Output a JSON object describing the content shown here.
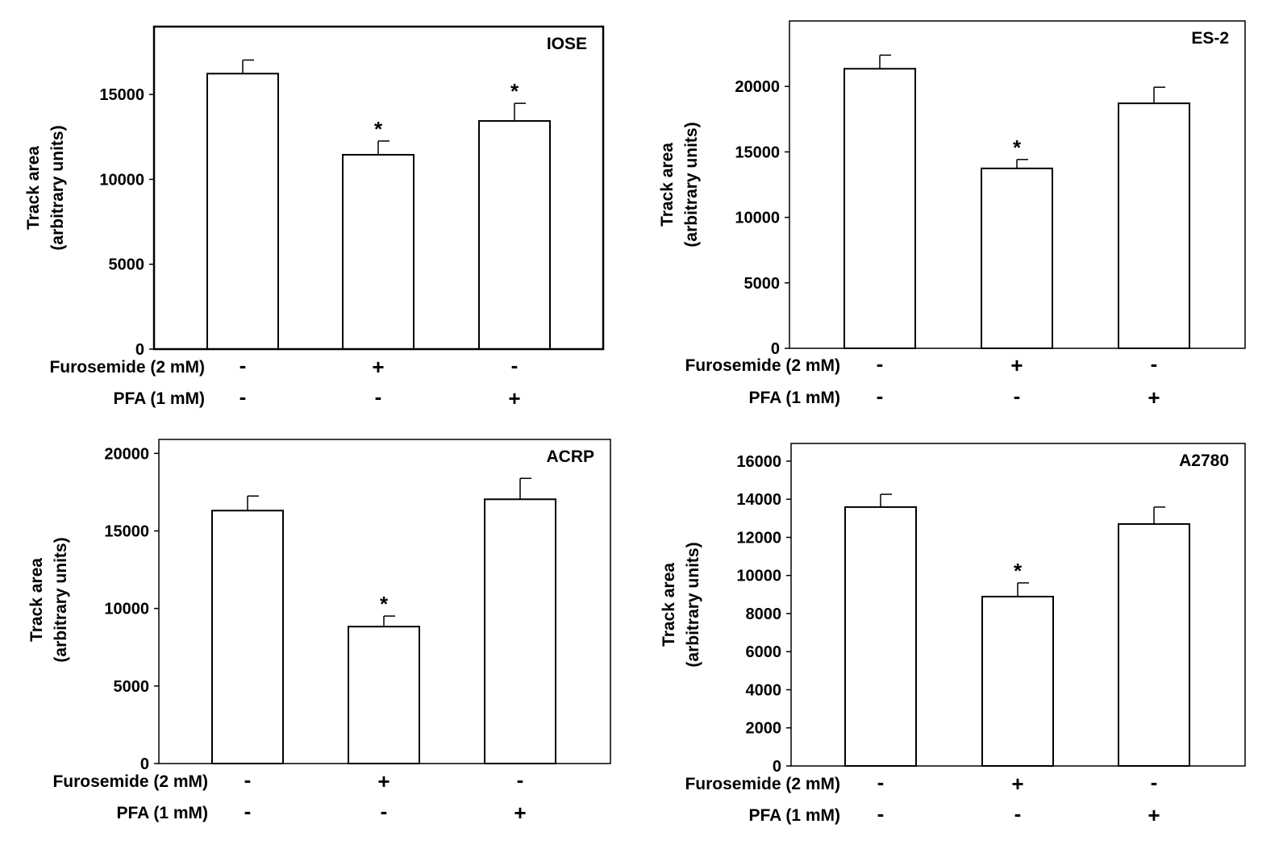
{
  "chart_data": [
    {
      "type": "bar",
      "title": "IOSE",
      "ylabel": [
        "Track area",
        "(arbitrary units)"
      ],
      "ylim": [
        0,
        19000
      ],
      "yticks": [
        0,
        5000,
        10000,
        15000
      ],
      "rows": [
        {
          "label": "Furosemide (2 mM)",
          "values": [
            "-",
            "+",
            "-"
          ]
        },
        {
          "label": "PFA (1 mM)",
          "values": [
            "-",
            "-",
            "+"
          ]
        }
      ],
      "values": [
        16230,
        11450,
        13440
      ],
      "errors": [
        800,
        810,
        1040
      ],
      "significance": [
        "",
        "*",
        "*"
      ]
    },
    {
      "type": "bar",
      "title": "ES-2",
      "ylabel": [
        "Track area",
        "(arbitrary units)"
      ],
      "ylim": [
        0,
        25000
      ],
      "yticks": [
        0,
        5000,
        10000,
        15000,
        20000
      ],
      "rows": [
        {
          "label": "Furosemide (2 mM)",
          "values": [
            "-",
            "+",
            "-"
          ]
        },
        {
          "label": "PFA (1 mM)",
          "values": [
            "-",
            "-",
            "+"
          ]
        }
      ],
      "values": [
        21350,
        13740,
        18710
      ],
      "errors": [
        1040,
        680,
        1230
      ],
      "significance": [
        "",
        "*",
        ""
      ]
    },
    {
      "type": "bar",
      "title": "ACRP",
      "ylabel": [
        "Track area",
        "(arbitrary units)"
      ],
      "ylim": [
        0,
        20900
      ],
      "yticks": [
        0,
        5000,
        10000,
        15000,
        20000
      ],
      "rows": [
        {
          "label": "Furosemide (2 mM)",
          "values": [
            "-",
            "+",
            "-"
          ]
        },
        {
          "label": "PFA (1 mM)",
          "values": [
            "-",
            "-",
            "+"
          ]
        }
      ],
      "values": [
        16310,
        8830,
        17040
      ],
      "errors": [
        940,
        680,
        1350
      ],
      "significance": [
        "",
        "*",
        ""
      ]
    },
    {
      "type": "bar",
      "title": "A2780",
      "ylabel": [
        "Track area",
        "(arbitrary units)"
      ],
      "ylim": [
        0,
        16930
      ],
      "yticks": [
        0,
        2000,
        4000,
        6000,
        8000,
        10000,
        12000,
        14000,
        16000
      ],
      "rows": [
        {
          "label": "Furosemide (2 mM)",
          "values": [
            "-",
            "+",
            "-"
          ]
        },
        {
          "label": "PFA (1 mM)",
          "values": [
            "-",
            "-",
            "+"
          ]
        }
      ],
      "values": [
        13590,
        8890,
        12700
      ],
      "errors": [
        670,
        720,
        890
      ],
      "significance": [
        "",
        "*",
        ""
      ]
    }
  ]
}
